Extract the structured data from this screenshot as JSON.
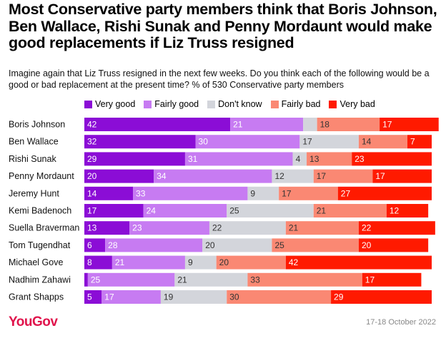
{
  "title": "Most Conservative party members think that Boris Johnson, Ben Wallace, Rishi Sunak and Penny Mordaunt would make good replacements if Liz Truss resigned",
  "subtitle": "Imagine again that Liz Truss resigned in the next few weeks. Do you think each of the following would be a good or bad replacement at the present time? % of 530 Conservative party members",
  "footer": {
    "brand": "YouGov",
    "date": "17-18 October 2022"
  },
  "chart_data": {
    "type": "bar",
    "orientation": "horizontal",
    "stacked": true,
    "categories": [
      "Boris Johnson",
      "Ben Wallace",
      "Rishi Sunak",
      "Penny Mordaunt",
      "Jeremy Hunt",
      "Kemi Badenoch",
      "Suella Braverman",
      "Tom Tugendhat",
      "Michael Gove",
      "Nadhim Zahawi",
      "Grant Shapps"
    ],
    "series": [
      {
        "name": "Very good",
        "color": "#8b0dd6",
        "label_color": "#ffffff",
        "values": [
          42,
          32,
          29,
          20,
          14,
          17,
          13,
          6,
          8,
          1,
          5
        ]
      },
      {
        "name": "Fairly good",
        "color": "#c77bf2",
        "label_color": "#ffffff",
        "values": [
          21,
          30,
          31,
          34,
          33,
          24,
          23,
          28,
          21,
          25,
          17
        ]
      },
      {
        "name": "Don't know",
        "color": "#d3d5db",
        "label_color": "#333333",
        "values": [
          4,
          17,
          4,
          12,
          9,
          25,
          22,
          20,
          9,
          21,
          19
        ]
      },
      {
        "name": "Fairly bad",
        "color": "#fa8873",
        "label_color": "#333333",
        "values": [
          18,
          14,
          13,
          17,
          17,
          21,
          21,
          25,
          20,
          33,
          30
        ]
      },
      {
        "name": "Very bad",
        "color": "#ff1a00",
        "label_color": "#ffffff",
        "values": [
          17,
          7,
          23,
          17,
          27,
          12,
          22,
          20,
          42,
          17,
          29
        ]
      }
    ],
    "hidden_labels": [
      [
        0,
        2
      ],
      [
        9,
        0
      ]
    ],
    "legend_position": "top-left",
    "grid": false
  }
}
